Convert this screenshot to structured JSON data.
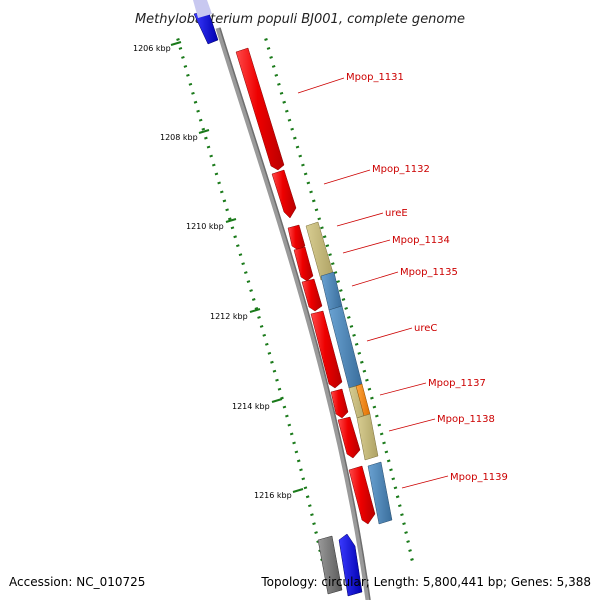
{
  "title": "Methylobacterium populi BJ001, complete genome",
  "footer": {
    "accession": "Accession: NC_010725",
    "summary": "Topology: circular; Length: 5,800,441 bp; Genes: 5,388"
  },
  "kbp_ticks": [
    {
      "label": "1206 kbp"
    },
    {
      "label": "1208 kbp"
    },
    {
      "label": "1210 kbp"
    },
    {
      "label": "1212 kbp"
    },
    {
      "label": "1214 kbp"
    },
    {
      "label": "1216 kbp"
    }
  ],
  "gene_labels": [
    {
      "label": "Mpop_1131"
    },
    {
      "label": "Mpop_1132"
    },
    {
      "label": "ureE"
    },
    {
      "label": "Mpop_1134"
    },
    {
      "label": "Mpop_1135"
    },
    {
      "label": "ureC"
    },
    {
      "label": "Mpop_1137"
    },
    {
      "label": "Mpop_1138"
    },
    {
      "label": "Mpop_1139"
    }
  ],
  "colors": {
    "forward_cds": "#ee0000",
    "reverse_blue": "#0000dd",
    "gray_feature": "#777777",
    "steel_blue": "#4a86b8",
    "khaki": "#c4b878",
    "orange": "#ff8800",
    "backbone": "#999999",
    "tick_green": "#1a7a1a",
    "label_red": "#cc0000"
  }
}
